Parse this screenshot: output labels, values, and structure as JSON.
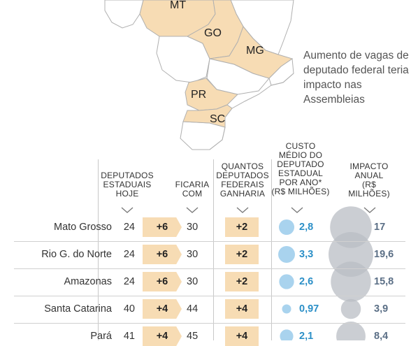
{
  "caption": "Aumento de vagas de deputado federal teria impacto nas Assembleias",
  "map": {
    "states": [
      {
        "name": "MT",
        "highlighted": true
      },
      {
        "name": "GO",
        "highlighted": true
      },
      {
        "name": "MG",
        "highlighted": true
      },
      {
        "name": "PR",
        "highlighted": true
      },
      {
        "name": "SC",
        "highlighted": true
      }
    ],
    "colors": {
      "highlight": "#f7dcb4",
      "other": "#ffffff",
      "border": "#b0b0b0",
      "sea": "#ffffff"
    }
  },
  "headers": {
    "deputados_hoje": "DEPUTADOS ESTADUAIS HOJE",
    "ficaria_com": "FICARIA COM",
    "federais_ganharia": "QUANTOS DEPUTADOS FEDERAIS GANHARIA",
    "custo_medio": "CUSTO MÉDIO DO DEPUTADO ESTADUAL POR ANO* (R$ MILHÕES)",
    "impacto_anual": "IMPACTO ANUAL (R$ MILHÕES)"
  },
  "colors": {
    "badge": "#f7dcb4",
    "cost_circle": "#a9d3ee",
    "cost_text": "#2b8fc7",
    "impact_circle": "#b9bec4",
    "impact_text": "#5b6f86"
  },
  "chart_data": {
    "type": "table",
    "title": "",
    "columns": [
      "DEPUTADOS ESTADUAIS HOJE",
      "FICARIA COM",
      "QUANTOS DEPUTADOS FEDERAIS GANHARIA",
      "CUSTO MÉDIO DO DEPUTADO ESTADUAL POR ANO* (R$ MILHÕES)",
      "IMPACTO ANUAL (R$ MILHÕES)"
    ],
    "rows": [
      {
        "state": "Mato Grosso",
        "hoje": 24,
        "aumento": "+6",
        "ficaria": 30,
        "federais": "+2",
        "custo": 2.8,
        "custo_label": "2,8",
        "impacto": 17,
        "impacto_label": "17"
      },
      {
        "state": "Rio G. do Norte",
        "hoje": 24,
        "aumento": "+6",
        "ficaria": 30,
        "federais": "+2",
        "custo": 3.3,
        "custo_label": "3,3",
        "impacto": 19.6,
        "impacto_label": "19,6"
      },
      {
        "state": "Amazonas",
        "hoje": 24,
        "aumento": "+6",
        "ficaria": 30,
        "federais": "+2",
        "custo": 2.6,
        "custo_label": "2,6",
        "impacto": 15.8,
        "impacto_label": "15,8"
      },
      {
        "state": "Santa Catarina",
        "hoje": 40,
        "aumento": "+4",
        "ficaria": 44,
        "federais": "+4",
        "custo": 0.97,
        "custo_label": "0,97",
        "impacto": 3.9,
        "impacto_label": "3,9"
      },
      {
        "state": "Pará",
        "hoje": 41,
        "aumento": "+4",
        "ficaria": 45,
        "federais": "+4",
        "custo": 2.1,
        "custo_label": "2,1",
        "impacto": 8.4,
        "impacto_label": "8,4"
      }
    ]
  }
}
